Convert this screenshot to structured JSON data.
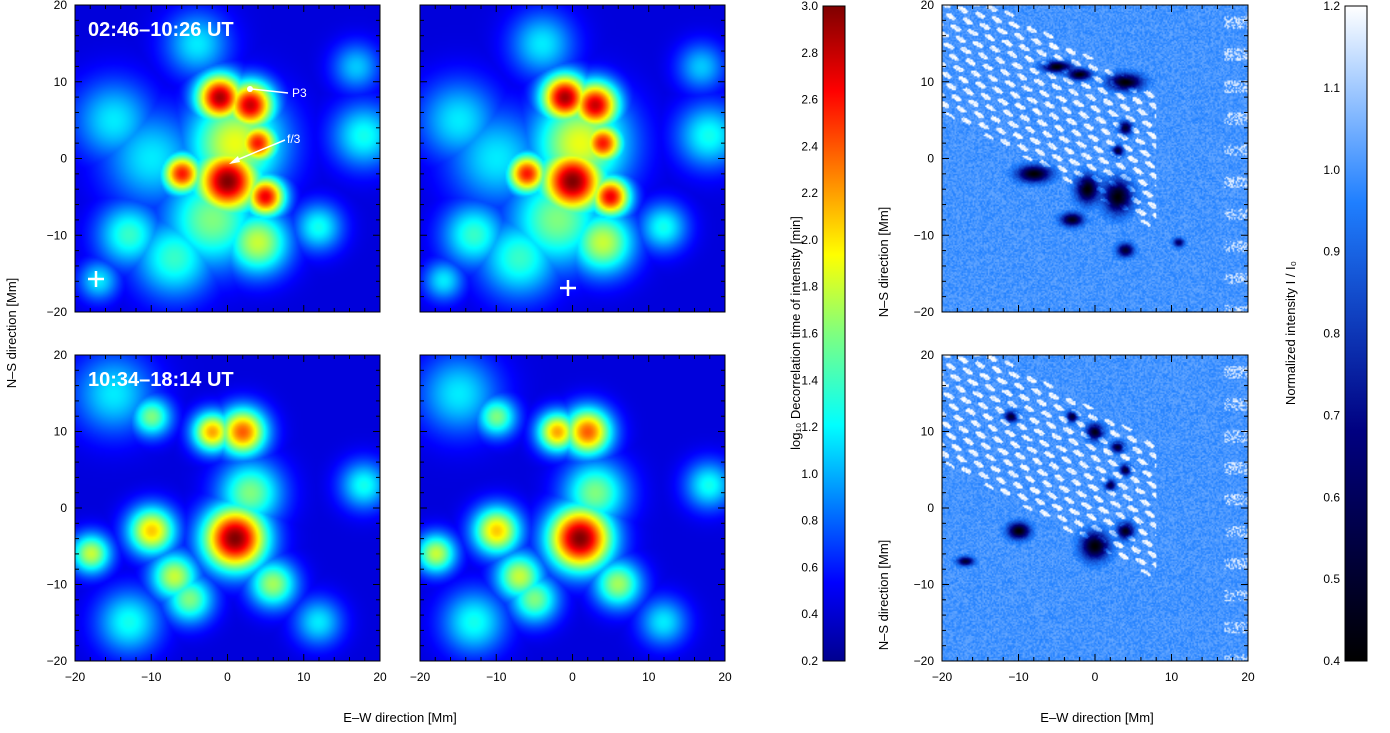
{
  "chart_data": [
    {
      "type": "heatmap",
      "quantity": "decorrelation time of intensity (log10 min)",
      "xlabel": "E–W direction   [Mm]",
      "ylabel": "N–S direction   [Mm]",
      "xlim": [
        -20,
        20
      ],
      "ylim": [
        -20,
        20
      ],
      "xticks": [
        -20,
        -10,
        0,
        10,
        20
      ],
      "yticks": [
        -20,
        -10,
        0,
        10,
        20
      ],
      "panels": [
        {
          "row": 0,
          "col": 0,
          "label": "02:46–10:26 UT",
          "annotations": [
            {
              "text": "P3",
              "x": 2.5,
              "y": 9
            },
            {
              "text": "f/3",
              "x": 0.5,
              "y": -1
            }
          ],
          "marker": {
            "x": -18,
            "y": -16.5
          }
        },
        {
          "row": 0,
          "col": 1,
          "label": "",
          "marker": {
            "x": -1,
            "y": -17
          }
        },
        {
          "row": 1,
          "col": 0,
          "label": "10:34–18:14 UT"
        },
        {
          "row": 1,
          "col": 1,
          "label": ""
        }
      ],
      "blobs": {
        "top": [
          [
            -1,
            8,
            3,
            2.9
          ],
          [
            3,
            7,
            3,
            2.8
          ],
          [
            4,
            2,
            2.5,
            2.6
          ],
          [
            -6,
            -2,
            2.5,
            2.6
          ],
          [
            0,
            -3,
            4,
            3.0
          ],
          [
            5,
            -5,
            2.5,
            2.7
          ],
          [
            1,
            2,
            6,
            1.9
          ],
          [
            -2,
            -8,
            6,
            1.6
          ],
          [
            4,
            -11,
            4,
            1.8
          ],
          [
            -7,
            -13,
            5,
            1.4
          ],
          [
            -15,
            5,
            5,
            1.2
          ],
          [
            -10,
            0,
            6,
            1.2
          ],
          [
            -13,
            -10,
            4,
            1.4
          ],
          [
            18,
            3,
            4,
            1.3
          ],
          [
            17,
            12,
            3,
            1.1
          ],
          [
            -17,
            -16,
            2.5,
            1.2
          ],
          [
            -4,
            15,
            4,
            1.2
          ],
          [
            12,
            -9,
            3,
            1.3
          ]
        ],
        "bottom": [
          [
            1,
            -4,
            4,
            3.0
          ],
          [
            2,
            10,
            3,
            2.4
          ],
          [
            -2,
            10,
            2.5,
            2.2
          ],
          [
            -10,
            -3,
            3,
            2.1
          ],
          [
            -18,
            -6,
            2.5,
            1.8
          ],
          [
            -7,
            -9,
            3,
            1.8
          ],
          [
            -5,
            -12,
            3,
            1.6
          ],
          [
            6,
            -10,
            3,
            1.7
          ],
          [
            -10,
            12,
            2.5,
            1.6
          ],
          [
            3,
            2,
            4,
            1.6
          ],
          [
            18,
            3,
            3,
            1.3
          ],
          [
            12,
            -15,
            3,
            1.2
          ],
          [
            -15,
            15,
            5,
            1.2
          ],
          [
            -13,
            -15,
            4,
            1.3
          ]
        ]
      },
      "colorbar": {
        "label": "log₁₀ Decorrelation time of intensity  [min]",
        "min": 0.2,
        "max": 3.0,
        "ticks": [
          "3.0",
          "2.8",
          "2.6",
          "2.4",
          "2.2",
          "2.0",
          "1.8",
          "1.6",
          "1.4",
          "1.2",
          "1.0",
          "0.8",
          "0.6",
          "0.4",
          "0.2"
        ]
      },
      "colors": {
        "low": "#0a0a90",
        "high": "#6a0000"
      }
    },
    {
      "type": "heatmap",
      "quantity": "normalized intensity I/I0",
      "xlabel": "E–W direction   [Mm]",
      "ylabel": "N–S direction   [Mm]",
      "xlim": [
        -20,
        20
      ],
      "ylim": [
        -20,
        20
      ],
      "xticks": [
        -20,
        -10,
        0,
        10,
        20
      ],
      "yticks": [
        -20,
        -10,
        0,
        10,
        20
      ],
      "panels": [
        {
          "row": 0
        },
        {
          "row": 1
        }
      ],
      "spots": {
        "top": [
          [
            -5,
            12,
            2.5,
            1.0,
            0.4
          ],
          [
            -2,
            11,
            2,
            1.0,
            0.4
          ],
          [
            4,
            10,
            3,
            1.5,
            0.4
          ],
          [
            4,
            4,
            1.2,
            1.2,
            0.5
          ],
          [
            3,
            1,
            1,
            1,
            0.5
          ],
          [
            -8,
            -2,
            3,
            1.5,
            0.4
          ],
          [
            -1,
            -4,
            2,
            2.5,
            0.4
          ],
          [
            3,
            -5,
            2.5,
            3,
            0.4
          ],
          [
            -3,
            -8,
            2,
            1.2,
            0.45
          ],
          [
            4,
            -12,
            1.5,
            1.2,
            0.5
          ],
          [
            11,
            -11,
            1,
            0.8,
            0.6
          ]
        ],
        "bottom": [
          [
            -11,
            12,
            1.2,
            1,
            0.5
          ],
          [
            -3,
            12,
            1,
            1,
            0.5
          ],
          [
            0,
            10,
            1.5,
            1.5,
            0.45
          ],
          [
            3,
            8,
            1.2,
            1,
            0.5
          ],
          [
            4,
            5,
            1,
            1,
            0.5
          ],
          [
            -10,
            -3,
            2,
            1.5,
            0.4
          ],
          [
            0,
            -5,
            2.5,
            2.5,
            0.4
          ],
          [
            4,
            -3,
            1.5,
            1.5,
            0.45
          ],
          [
            -17,
            -7,
            1.5,
            0.8,
            0.5
          ],
          [
            2,
            3,
            1,
            1,
            0.55
          ]
        ]
      },
      "colorbar": {
        "label": "Normalized intensity    I / I₀",
        "min": 0.4,
        "max": 1.2,
        "ticks": [
          "1.2",
          "1.1",
          "1.0",
          "0.9",
          "0.8",
          "0.7",
          "0.6",
          "0.5",
          "0.4"
        ]
      }
    }
  ],
  "labels": {
    "xlabel_left": "E–W direction   [Mm]",
    "xlabel_right": "E–W direction   [Mm]",
    "ylabel_left": "N–S direction   [Mm]",
    "ylabel_right_top": "N–S direction   [Mm]",
    "ylabel_right_bottom": "N–S direction   [Mm]",
    "time_top": "02:46–10:26 UT",
    "time_bottom": "10:34–18:14 UT",
    "annot_p3": "P3",
    "annot_f3": "f/3",
    "cb1_label": "log₁₀ Decorrelation time of intensity  [min]",
    "cb2_label": "Normalized intensity    I / I₀"
  }
}
